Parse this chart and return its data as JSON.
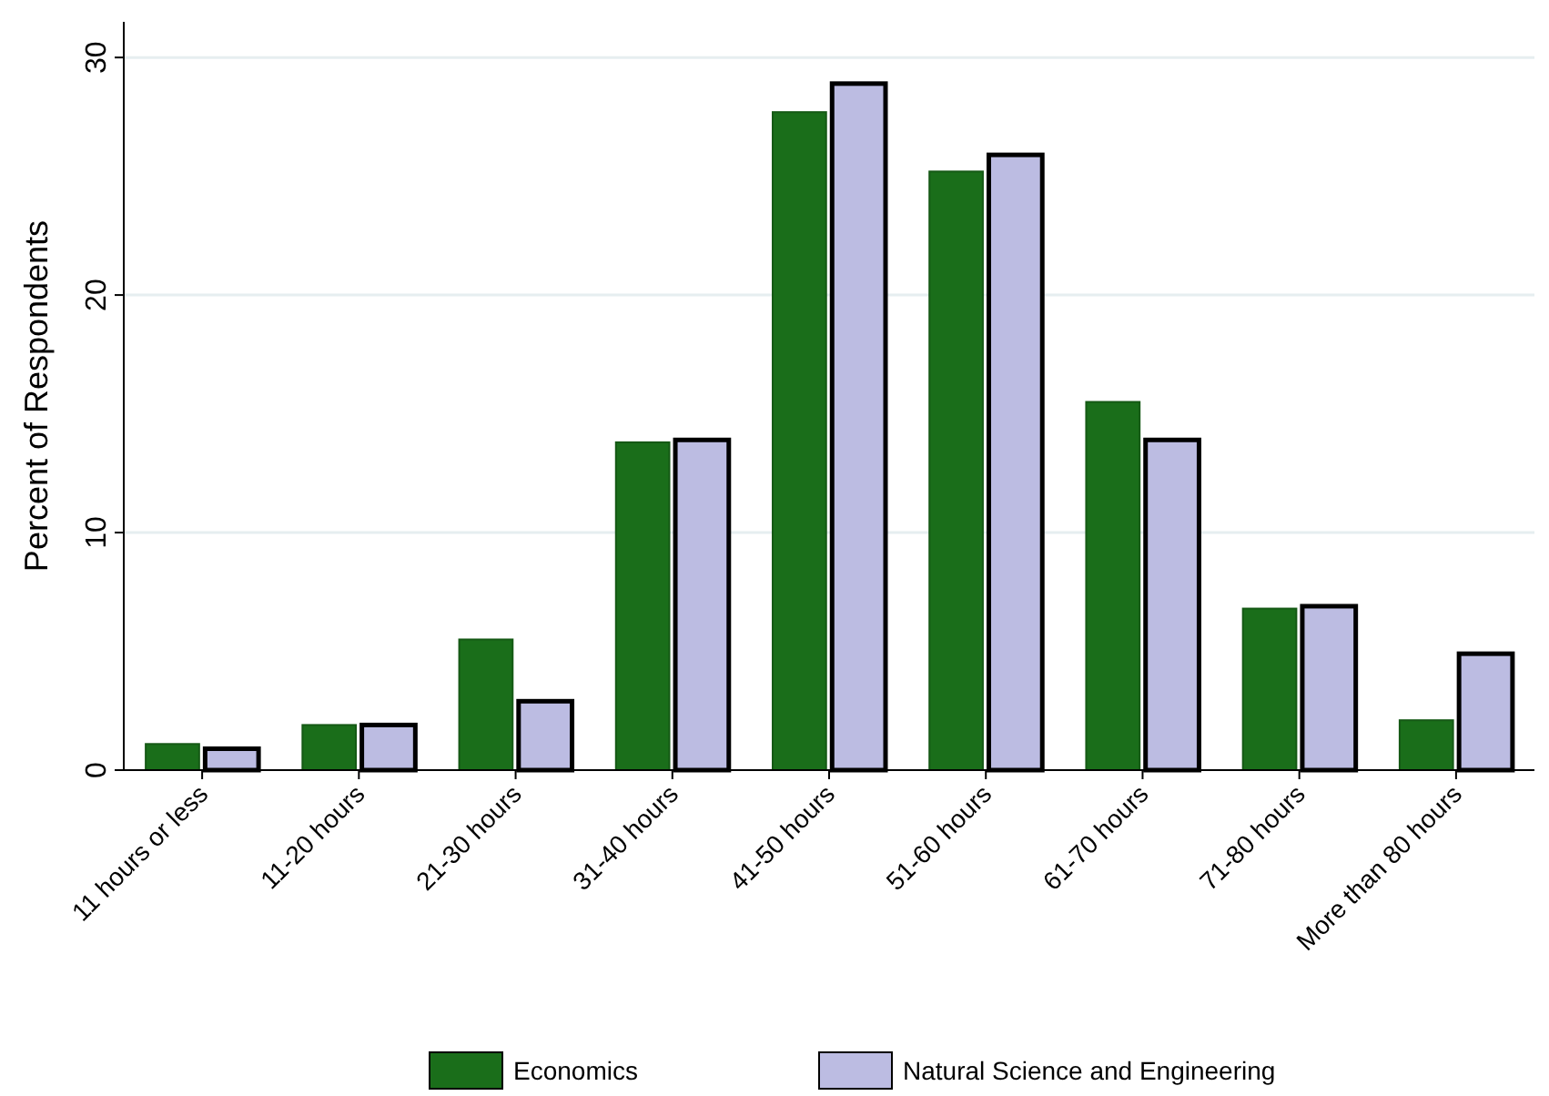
{
  "chart_data": {
    "type": "bar",
    "ylabel": "Percent of Respondents",
    "categories": [
      "11 hours or less",
      "11-20 hours",
      "21-30 hours",
      "31-40 hours",
      "41-50 hours",
      "51-60 hours",
      "61-70 hours",
      "71-80 hours",
      "More than 80 hours"
    ],
    "series": [
      {
        "name": "Economics",
        "color": "#1a6e1a",
        "values": [
          1.1,
          1.9,
          5.5,
          13.8,
          27.7,
          25.2,
          15.5,
          6.8,
          2.1
        ]
      },
      {
        "name": "Natural Science and Engineering",
        "color": "#bcbce2",
        "values": [
          0.9,
          1.9,
          2.9,
          13.9,
          28.9,
          25.9,
          13.9,
          6.9,
          4.9
        ]
      }
    ],
    "ylim": [
      0,
      31.5
    ],
    "yticks": [
      0,
      10,
      20,
      30
    ],
    "grid": "y",
    "legend": "bottom"
  }
}
